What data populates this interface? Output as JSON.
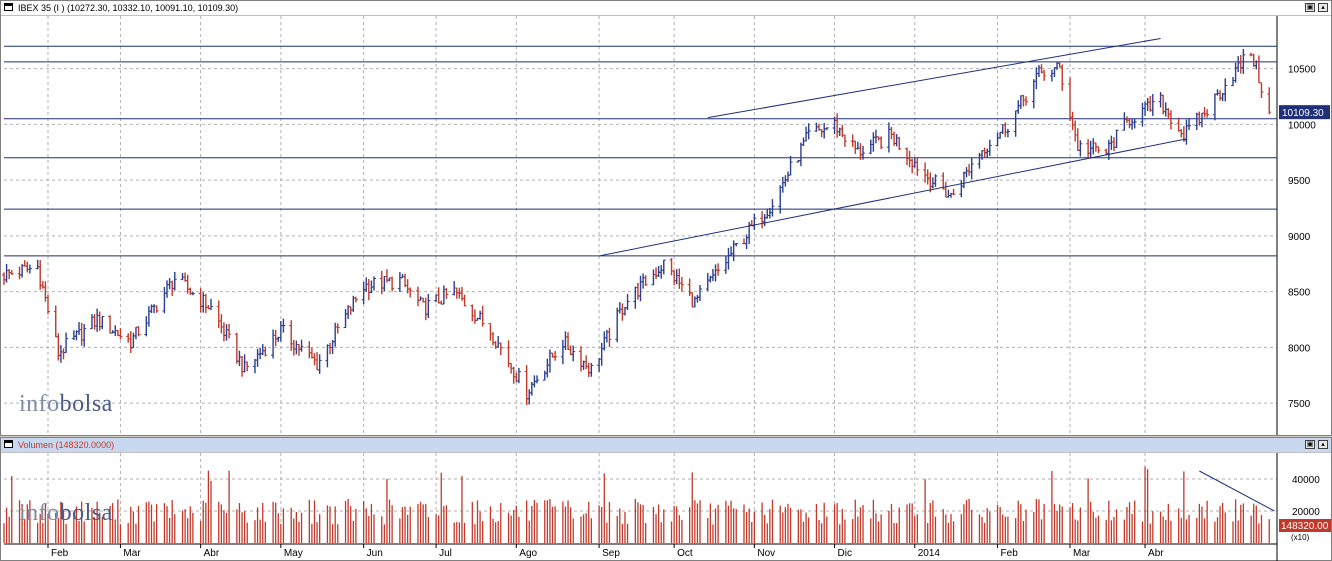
{
  "main": {
    "title": "IBEX 35 (I ) (10272.30, 10332.10, 10091.10, 10109.30)",
    "last_price_label": "10109.30",
    "watermark_a": "info",
    "watermark_b": "bolsa"
  },
  "volume": {
    "title": "Volumen (148320.0000)",
    "last_label": "148320.00",
    "unit_label": "(x10)",
    "watermark_a": "info",
    "watermark_b": "bolsa"
  },
  "buttons": {
    "restore": "▣",
    "maximize": "▴"
  },
  "colors": {
    "up": "#2a3f8f",
    "down": "#c0392b",
    "accent": "#1f2f7a",
    "grid": "#b0b0b0",
    "volume": "#c0392b"
  },
  "chart_data": [
    {
      "type": "bar",
      "name": "IBEX 35 price (OHLC bars)",
      "ylim": [
        7250,
        10900
      ],
      "y_ticks": [
        7500,
        8000,
        8500,
        9000,
        9500,
        10000,
        10500
      ],
      "x_labels": [
        "Feb",
        "Mar",
        "Abr",
        "May",
        "Jun",
        "Jul",
        "Ago",
        "Sep",
        "Oct",
        "Nov",
        "Dic",
        "2014",
        "Feb",
        "Mar",
        "Abr"
      ],
      "last_value": 10109.3,
      "horizontal_levels": [
        10700,
        10560,
        10050,
        9700,
        9240,
        8820
      ],
      "trendlines": [
        {
          "from": [
            "2013-10-14",
            10060
          ],
          "to": [
            "2014-04-07",
            10770
          ]
        },
        {
          "from": [
            "2013-09-02",
            8820
          ],
          "to": [
            "2014-04-17",
            9870
          ]
        }
      ],
      "anchors": [
        [
          "2013-01-15",
          8650
        ],
        [
          "2013-01-28",
          8720
        ],
        [
          "2013-02-05",
          7950
        ],
        [
          "2013-02-20",
          8250
        ],
        [
          "2013-03-05",
          8050
        ],
        [
          "2013-03-22",
          8620
        ],
        [
          "2013-04-05",
          8350
        ],
        [
          "2013-04-18",
          7800
        ],
        [
          "2013-05-02",
          8150
        ],
        [
          "2013-05-16",
          7850
        ],
        [
          "2013-06-03",
          8550
        ],
        [
          "2013-06-17",
          8600
        ],
        [
          "2013-06-26",
          8350
        ],
        [
          "2013-07-08",
          8500
        ],
        [
          "2013-07-22",
          8150
        ],
        [
          "2013-08-05",
          7600
        ],
        [
          "2013-08-19",
          8050
        ],
        [
          "2013-08-30",
          7800
        ],
        [
          "2013-09-12",
          8400
        ],
        [
          "2013-09-27",
          8750
        ],
        [
          "2013-10-09",
          8400
        ],
        [
          "2013-10-25",
          8900
        ],
        [
          "2013-11-08",
          9300
        ],
        [
          "2013-11-22",
          9900
        ],
        [
          "2013-12-02",
          10000
        ],
        [
          "2013-12-11",
          9750
        ],
        [
          "2013-12-24",
          9900
        ],
        [
          "2014-01-06",
          9550
        ],
        [
          "2014-01-16",
          9350
        ],
        [
          "2014-01-27",
          9750
        ],
        [
          "2014-02-07",
          10000
        ],
        [
          "2014-02-19",
          10450
        ],
        [
          "2014-02-27",
          10500
        ],
        [
          "2014-03-06",
          9800
        ],
        [
          "2014-03-17",
          9750
        ],
        [
          "2014-03-26",
          10050
        ],
        [
          "2014-04-07",
          10200
        ],
        [
          "2014-04-16",
          9900
        ],
        [
          "2014-04-24",
          10100
        ],
        [
          "2014-05-05",
          10450
        ],
        [
          "2014-05-12",
          10650
        ],
        [
          "2014-05-19",
          10109
        ]
      ]
    },
    {
      "type": "bar",
      "name": "Volumen",
      "ylim": [
        0,
        55000
      ],
      "y_ticks": [
        20000,
        40000
      ],
      "last_value": 148320,
      "typical_value": 18000,
      "peak_value": 48000,
      "trendlines": [
        {
          "from": [
            "2014-04-22",
            45000
          ],
          "to": [
            "2014-05-21",
            20000
          ]
        }
      ]
    }
  ]
}
